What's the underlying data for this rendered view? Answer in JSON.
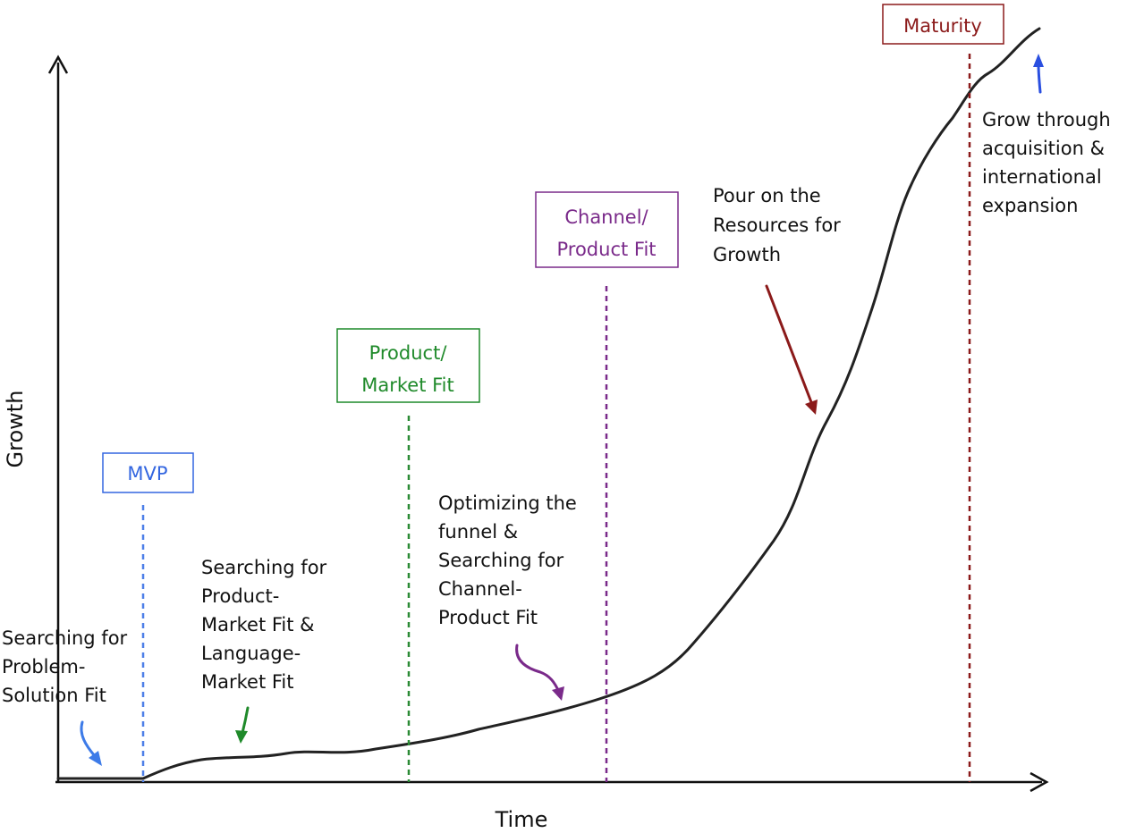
{
  "axes": {
    "x_label": "Time",
    "y_label": "Growth"
  },
  "milestones": [
    {
      "id": "mvp",
      "label_lines": [
        "MVP"
      ],
      "color": "#3366e0"
    },
    {
      "id": "product-market-fit",
      "label_lines": [
        "Product/",
        "Market Fit"
      ],
      "color": "#1f8a2a"
    },
    {
      "id": "channel-product-fit",
      "label_lines": [
        "Channel/",
        "Product Fit"
      ],
      "color": "#7a2a8a"
    },
    {
      "id": "maturity",
      "label_lines": [
        "Maturity"
      ],
      "color": "#8b1a1a"
    }
  ],
  "annotations": [
    {
      "id": "problem-solution",
      "lines": [
        "Searching for",
        "Problem-",
        "Solution Fit"
      ],
      "arrow_color": "#3d7be8"
    },
    {
      "id": "product-market",
      "lines": [
        "Searching for",
        "Product-",
        "Market Fit &",
        "Language-",
        "Market Fit"
      ],
      "arrow_color": "#1f8a2a"
    },
    {
      "id": "optimizing",
      "lines": [
        "Optimizing the",
        "funnel &",
        "Searching for",
        "Channel-",
        "Product Fit"
      ],
      "arrow_color": "#7a2a8a"
    },
    {
      "id": "resources",
      "lines": [
        "Pour on the",
        "Resources for",
        "Growth"
      ],
      "arrow_color": "#8b1a1a"
    },
    {
      "id": "acquisition",
      "lines": [
        "Grow through",
        "acquisition &",
        "international",
        "expansion"
      ],
      "arrow_color": "#2a4fe0"
    }
  ],
  "colors": {
    "axis": "#111111",
    "curve": "#222222"
  }
}
